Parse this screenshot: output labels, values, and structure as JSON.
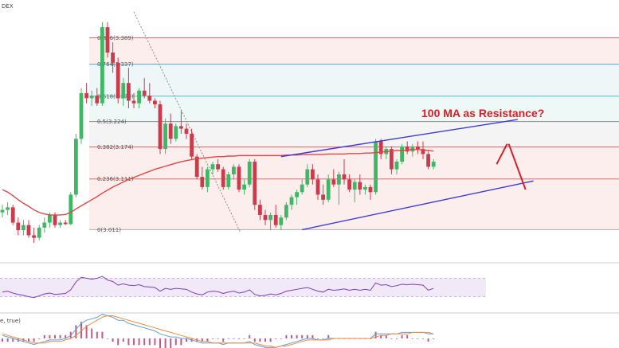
{
  "chart_data": {
    "type": "candlestick",
    "header_fragment": "DEX",
    "annotation": "100 MA as Resistance?",
    "fib_levels": [
      {
        "ratio": "0.886",
        "price": "3.389",
        "value": 3.389,
        "color": "#e06868",
        "fill": "#fdeeee"
      },
      {
        "ratio": "0.764",
        "price": "3.337",
        "value": 3.337,
        "color": "#55a9c9",
        "fill": "#eef6f8"
      },
      {
        "ratio": "0.618",
        "price": "3.274",
        "value": 3.274,
        "color": "#4cc0c0",
        "fill": "#eef8f7"
      },
      {
        "ratio": "0.5",
        "price": "3.224",
        "value": 3.224,
        "color": "#888888",
        "fill": "#f4f4f4"
      },
      {
        "ratio": "0.382",
        "price": "3.174",
        "value": 3.174,
        "color": "#e06868",
        "fill": "#fdeeee"
      },
      {
        "ratio": "0.236",
        "price": "3.111",
        "value": 3.111,
        "color": "#e06868",
        "fill": "#fdeeee"
      },
      {
        "ratio": "0",
        "price": "3.011",
        "value": 3.011,
        "color": "#aaaaaa",
        "fill": "#ffffff"
      }
    ],
    "price_range": [
      2.985,
      3.44
    ],
    "candles": [
      [
        3.045,
        3.06,
        3.035,
        3.05
      ],
      [
        3.05,
        3.065,
        3.04,
        3.055
      ],
      [
        3.055,
        3.06,
        3.02,
        3.025
      ],
      [
        3.025,
        3.035,
        3.0,
        3.01
      ],
      [
        3.01,
        3.03,
        3.0,
        3.02
      ],
      [
        3.02,
        3.03,
        2.995,
        3.0
      ],
      [
        3.0,
        3.015,
        2.985,
        2.995
      ],
      [
        2.995,
        3.02,
        2.99,
        3.015
      ],
      [
        3.015,
        3.035,
        3.005,
        3.025
      ],
      [
        3.025,
        3.045,
        3.015,
        3.04
      ],
      [
        3.04,
        3.045,
        3.015,
        3.02
      ],
      [
        3.02,
        3.03,
        3.015,
        3.025
      ],
      [
        3.025,
        3.03,
        3.02,
        3.022
      ],
      [
        3.022,
        3.085,
        3.02,
        3.08
      ],
      [
        3.08,
        3.2,
        3.075,
        3.19
      ],
      [
        3.19,
        3.29,
        3.18,
        3.28
      ],
      [
        3.28,
        3.3,
        3.26,
        3.27
      ],
      [
        3.27,
        3.285,
        3.255,
        3.275
      ],
      [
        3.275,
        3.29,
        3.255,
        3.26
      ],
      [
        3.26,
        3.42,
        3.255,
        3.41
      ],
      [
        3.41,
        3.42,
        3.35,
        3.36
      ],
      [
        3.36,
        3.38,
        3.32,
        3.34
      ],
      [
        3.34,
        3.35,
        3.26,
        3.27
      ],
      [
        3.27,
        3.31,
        3.255,
        3.3
      ],
      [
        3.3,
        3.33,
        3.25,
        3.265
      ],
      [
        3.265,
        3.28,
        3.25,
        3.26
      ],
      [
        3.26,
        3.29,
        3.25,
        3.285
      ],
      [
        3.285,
        3.31,
        3.27,
        3.275
      ],
      [
        3.275,
        3.3,
        3.26,
        3.265
      ],
      [
        3.265,
        3.27,
        3.25,
        3.258
      ],
      [
        3.258,
        3.265,
        3.16,
        3.17
      ],
      [
        3.17,
        3.23,
        3.16,
        3.22
      ],
      [
        3.22,
        3.24,
        3.18,
        3.19
      ],
      [
        3.19,
        3.22,
        3.185,
        3.215
      ],
      [
        3.215,
        3.245,
        3.2,
        3.21
      ],
      [
        3.21,
        3.22,
        3.19,
        3.2
      ],
      [
        3.2,
        3.21,
        3.15,
        3.155
      ],
      [
        3.155,
        3.16,
        3.11,
        3.115
      ],
      [
        3.115,
        3.135,
        3.09,
        3.095
      ],
      [
        3.095,
        3.135,
        3.085,
        3.13
      ],
      [
        3.13,
        3.145,
        3.12,
        3.14
      ],
      [
        3.14,
        3.15,
        3.125,
        3.13
      ],
      [
        3.13,
        3.135,
        3.09,
        3.095
      ],
      [
        3.095,
        3.125,
        3.09,
        3.12
      ],
      [
        3.12,
        3.14,
        3.11,
        3.135
      ],
      [
        3.135,
        3.14,
        3.085,
        3.09
      ],
      [
        3.09,
        3.11,
        3.08,
        3.1
      ],
      [
        3.1,
        3.15,
        3.095,
        3.145
      ],
      [
        3.145,
        3.15,
        3.05,
        3.06
      ],
      [
        3.06,
        3.07,
        3.03,
        3.04
      ],
      [
        3.04,
        3.05,
        3.02,
        3.03
      ],
      [
        3.03,
        3.045,
        3.01,
        3.04
      ],
      [
        3.04,
        3.06,
        3.015,
        3.02
      ],
      [
        3.02,
        3.04,
        3.01,
        3.035
      ],
      [
        3.035,
        3.065,
        3.03,
        3.06
      ],
      [
        3.06,
        3.08,
        3.05,
        3.075
      ],
      [
        3.075,
        3.09,
        3.06,
        3.085
      ],
      [
        3.085,
        3.11,
        3.08,
        3.1
      ],
      [
        3.1,
        3.14,
        3.095,
        3.13
      ],
      [
        3.13,
        3.14,
        3.1,
        3.11
      ],
      [
        3.11,
        3.12,
        3.07,
        3.08
      ],
      [
        3.08,
        3.1,
        3.06,
        3.07
      ],
      [
        3.07,
        3.12,
        3.065,
        3.11
      ],
      [
        3.11,
        3.13,
        3.095,
        3.1
      ],
      [
        3.1,
        3.125,
        3.06,
        3.12
      ],
      [
        3.12,
        3.15,
        3.1,
        3.11
      ],
      [
        3.11,
        3.12,
        3.085,
        3.09
      ],
      [
        3.09,
        3.11,
        3.065,
        3.105
      ],
      [
        3.105,
        3.12,
        3.08,
        3.09
      ],
      [
        3.09,
        3.1,
        3.08,
        3.095
      ],
      [
        3.095,
        3.1,
        3.07,
        3.085
      ],
      [
        3.085,
        3.19,
        3.08,
        3.185
      ],
      [
        3.185,
        3.19,
        3.15,
        3.16
      ],
      [
        3.16,
        3.175,
        3.15,
        3.17
      ],
      [
        3.17,
        3.175,
        3.12,
        3.13
      ],
      [
        3.13,
        3.15,
        3.12,
        3.145
      ],
      [
        3.145,
        3.18,
        3.14,
        3.175
      ],
      [
        3.175,
        3.185,
        3.16,
        3.165
      ],
      [
        3.165,
        3.18,
        3.155,
        3.175
      ],
      [
        3.175,
        3.185,
        3.16,
        3.17
      ],
      [
        3.17,
        3.185,
        3.15,
        3.16
      ],
      [
        3.16,
        3.165,
        3.13,
        3.135
      ],
      [
        3.135,
        3.15,
        3.13,
        3.145
      ]
    ],
    "ma_100": [
      3.09,
      3.085,
      3.078,
      3.07,
      3.063,
      3.057,
      3.05,
      3.045,
      3.042,
      3.04,
      3.04,
      3.04,
      3.041,
      3.045,
      3.052,
      3.058,
      3.064,
      3.07,
      3.076,
      3.083,
      3.089,
      3.095,
      3.1,
      3.105,
      3.11,
      3.114,
      3.118,
      3.122,
      3.126,
      3.13,
      3.133,
      3.136,
      3.139,
      3.142,
      3.145,
      3.147,
      3.149,
      3.151,
      3.152,
      3.153,
      3.154,
      3.155,
      3.155,
      3.156,
      3.156,
      3.157,
      3.157,
      3.157,
      3.157,
      3.157,
      3.157,
      3.157,
      3.157,
      3.157,
      3.158,
      3.158,
      3.158,
      3.159,
      3.159,
      3.159,
      3.159,
      3.159,
      3.16,
      3.16,
      3.16,
      3.16,
      3.161,
      3.161,
      3.161,
      3.162,
      3.162,
      3.163,
      3.164,
      3.165,
      3.166,
      3.167,
      3.167,
      3.168,
      3.169,
      3.169,
      3.168,
      3.167,
      3.166
    ],
    "rsi": [
      40,
      42,
      38,
      35,
      33,
      30,
      28,
      32,
      36,
      38,
      35,
      36,
      37,
      45,
      62,
      72,
      70,
      68,
      70,
      74,
      66,
      63,
      55,
      58,
      55,
      54,
      56,
      52,
      51,
      50,
      42,
      48,
      46,
      48,
      47,
      46,
      40,
      36,
      34,
      40,
      42,
      41,
      37,
      40,
      42,
      38,
      40,
      45,
      35,
      32,
      33,
      36,
      34,
      37,
      42,
      44,
      46,
      48,
      50,
      46,
      42,
      40,
      46,
      44,
      45,
      47,
      44,
      46,
      44,
      46,
      44,
      60,
      55,
      56,
      52,
      54,
      57,
      56,
      57,
      56,
      55,
      44,
      48
    ],
    "macd": [
      2,
      1,
      0,
      -1,
      -2,
      -3,
      -4,
      -3,
      -2,
      -1,
      -1,
      -1,
      0,
      2,
      6,
      10,
      12,
      13,
      14,
      16,
      15,
      14,
      12,
      12,
      10,
      9,
      8,
      7,
      6,
      5,
      3,
      2,
      1,
      1,
      0,
      0,
      -1,
      -2,
      -3,
      -3,
      -3,
      -3,
      -4,
      -3,
      -3,
      -3,
      -3,
      -2,
      -4,
      -5,
      -6,
      -6,
      -6,
      -5,
      -4,
      -3,
      -2,
      -1,
      0,
      0,
      -1,
      -1,
      0,
      0,
      0,
      0,
      0,
      0,
      0,
      0,
      0,
      3,
      3,
      3,
      3,
      3,
      4,
      4,
      4,
      4,
      4,
      3,
      3
    ],
    "macd_signal": [
      3,
      2,
      1,
      0,
      -1,
      -2,
      -3,
      -3,
      -3,
      -2,
      -2,
      -2,
      -1,
      0,
      2,
      5,
      8,
      10,
      12,
      14,
      15,
      15,
      14,
      13,
      12,
      11,
      10,
      9,
      8,
      7,
      6,
      5,
      4,
      3,
      2,
      1,
      0,
      -1,
      -2,
      -2,
      -3,
      -3,
      -3,
      -3,
      -3,
      -3,
      -3,
      -3,
      -3,
      -4,
      -5,
      -5,
      -6,
      -5,
      -5,
      -4,
      -3,
      -2,
      -1,
      -1,
      -1,
      -1,
      -1,
      0,
      0,
      0,
      0,
      0,
      0,
      0,
      0,
      1,
      2,
      2,
      3,
      3,
      3,
      3,
      4,
      4,
      4,
      4,
      3
    ],
    "macd_label": "e, true)",
    "colors": {
      "bull": "#3fb865",
      "bear": "#cc3b4b",
      "ma": "#e04646",
      "channel": "#3a3ad6",
      "projection": "#d32027",
      "rsi": "#7d3db8",
      "rsi_band": "#f1e8f8",
      "macd": "#5aa0e0",
      "macd_signal": "#f08a40",
      "macd_hist": "#c25b8c"
    }
  }
}
